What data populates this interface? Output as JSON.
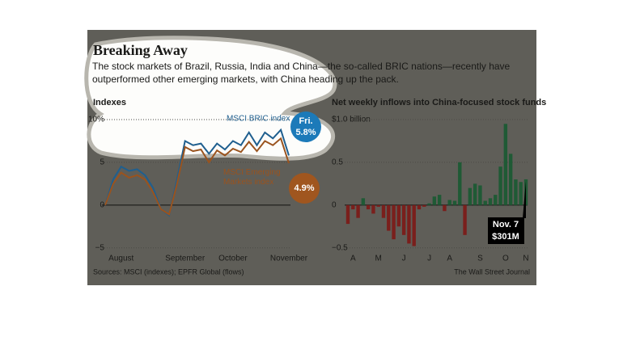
{
  "header": {
    "title": "Breaking Away",
    "subtitle": "The stock markets of Brazil, Russia, India and China—the so-called BRIC nations—recently have outperformed other emerging markets, with China heading up the pack."
  },
  "chart_data": [
    {
      "type": "line",
      "title": "Indexes",
      "categories": [
        null,
        null,
        "August",
        null,
        null,
        null,
        null,
        null,
        null,
        null,
        "September",
        null,
        null,
        null,
        null,
        null,
        "October",
        null,
        null,
        null,
        null,
        null,
        null,
        "November"
      ],
      "series": [
        {
          "name": "MSCI BRIC index",
          "color": "#1f5f8f",
          "values": [
            0,
            3,
            4.5,
            4,
            4.2,
            3.5,
            2,
            -0.5,
            -1.2,
            3,
            7.5,
            7,
            7.2,
            6,
            7.2,
            6.5,
            7.5,
            7,
            8.5,
            7,
            8.5,
            7.8,
            8.8,
            5.8
          ],
          "value_labels": [
            null,
            null,
            null,
            null,
            null,
            null,
            null,
            null,
            null,
            null,
            null,
            null,
            null,
            null,
            null,
            null,
            null,
            null,
            null,
            null,
            null,
            null,
            null,
            "5.8%"
          ]
        },
        {
          "name": "MSCI Emerging Markets index",
          "color": "#9a531e",
          "values": [
            0,
            2.5,
            3.8,
            3.2,
            3.5,
            3,
            1.5,
            -0.5,
            -1.1,
            2.5,
            6.8,
            6.3,
            6.5,
            5,
            6.4,
            5.8,
            6.6,
            6.2,
            7.4,
            6.3,
            7.5,
            7,
            7.8,
            4.9
          ],
          "value_labels": [
            null,
            null,
            null,
            null,
            null,
            null,
            null,
            null,
            null,
            null,
            null,
            null,
            null,
            null,
            null,
            null,
            null,
            null,
            null,
            null,
            null,
            null,
            null,
            "4.9%"
          ]
        }
      ],
      "annotation": "Fri.",
      "ylim": [
        -5.5,
        10
      ],
      "yticks": [
        {
          "value": 10,
          "label": "10%"
        },
        5,
        0,
        {
          "value": -5,
          "label": "−5"
        }
      ],
      "grid": true
    },
    {
      "type": "bar",
      "title": "Net weekly inflows into China-focused stock funds",
      "categories": [
        null,
        "A",
        null,
        null,
        null,
        null,
        "M",
        null,
        null,
        null,
        null,
        "J",
        null,
        null,
        null,
        null,
        "J",
        null,
        null,
        null,
        "A",
        null,
        null,
        null,
        null,
        null,
        "S",
        null,
        null,
        null,
        null,
        "O",
        null,
        null,
        null,
        "N"
      ],
      "values": [
        -0.22,
        -0.05,
        -0.15,
        0.08,
        -0.05,
        -0.1,
        -0.02,
        -0.15,
        -0.3,
        -0.4,
        -0.25,
        -0.35,
        -0.45,
        -0.48,
        -0.05,
        -0.02,
        0.02,
        0.1,
        0.12,
        -0.07,
        0.06,
        0.05,
        0.5,
        -0.35,
        0.2,
        0.25,
        0.23,
        0.05,
        0.08,
        0.12,
        0.45,
        0.95,
        0.6,
        0.3,
        0.27,
        0.301
      ],
      "value_labels": [
        null,
        null,
        null,
        null,
        null,
        null,
        null,
        null,
        null,
        null,
        null,
        null,
        null,
        null,
        null,
        null,
        null,
        null,
        null,
        null,
        null,
        null,
        null,
        null,
        null,
        null,
        null,
        null,
        null,
        null,
        null,
        null,
        null,
        null,
        null,
        "$301M"
      ],
      "annotation": "Nov. 7",
      "positive_color": "#1f5a35",
      "negative_color": "#7a1f1c",
      "ylim": [
        -0.55,
        1.0
      ],
      "yticks": [
        {
          "value": 1.0,
          "label": "$1.0 billion"
        },
        0.5,
        0,
        {
          "value": -0.5,
          "label": "−0.5"
        }
      ],
      "grid": true
    }
  ],
  "footer": {
    "source": "Sources: MSCI (indexes); EPFR Global (flows)",
    "credit": "The Wall Street Journal"
  }
}
